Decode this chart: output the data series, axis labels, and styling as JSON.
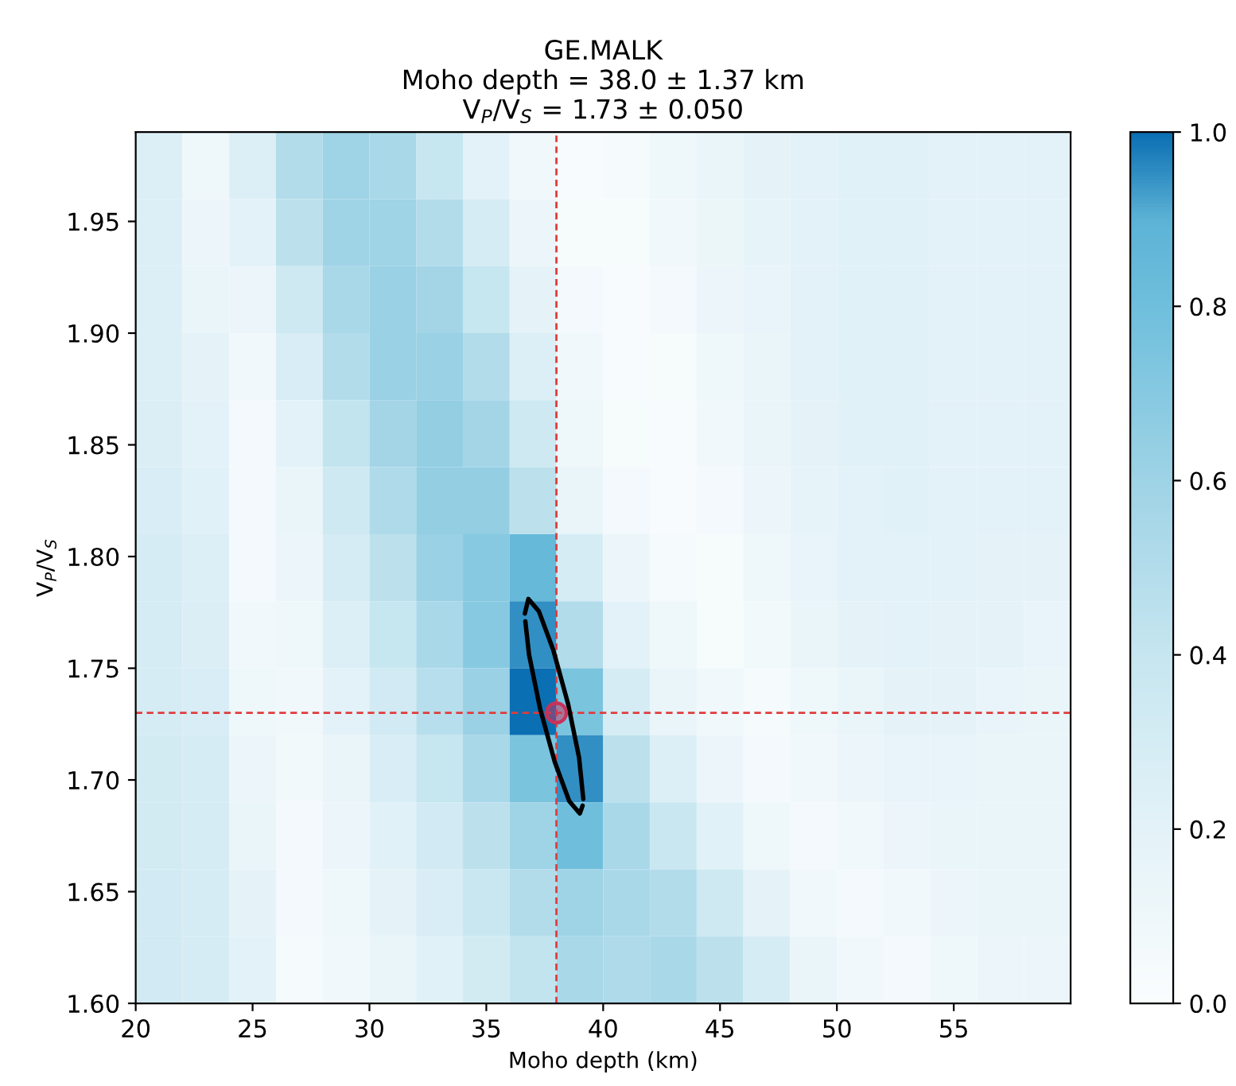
{
  "chart_data": {
    "type": "heatmap",
    "title": "GE.MALK\nMoho depth = 38.0 ± 1.37 km\nV$_{P}$/V$_{S}$ = 1.73 ± 0.050",
    "xlabel": "Moho depth (km)",
    "ylabel": "V$_{P}$/V$_{S}$",
    "xlim": [
      20,
      60
    ],
    "ylim": [
      1.6,
      1.99
    ],
    "xticks": [
      20,
      25,
      30,
      35,
      40,
      45,
      50,
      55
    ],
    "yticks": [
      {
        "value": 1.6,
        "label": "1.60"
      },
      1.65,
      {
        "value": 1.7,
        "label": "1.70"
      },
      1.75,
      {
        "value": 1.8,
        "label": "1.80"
      },
      1.85,
      {
        "value": 1.9,
        "label": "1.90"
      },
      1.95
    ],
    "clim": [
      0,
      1
    ],
    "cticks": [
      {
        "value": 0,
        "label": "0.0"
      },
      {
        "value": 0.2,
        "label": "0.2"
      },
      {
        "value": 0.4,
        "label": "0.4"
      },
      {
        "value": 0.6,
        "label": "0.6"
      },
      {
        "value": 0.8,
        "label": "0.8"
      },
      {
        "value": 1,
        "label": "1.0"
      }
    ],
    "colors": [
      "#fbfdfe",
      "#eef7fa",
      "#e3f2f8",
      "#d5ecf4",
      "#c6e6f0",
      "#b3dceb",
      "#9fd3e6",
      "#87c9e1",
      "#6fbfdc",
      "#5db3d6",
      "#0b6fb3"
    ],
    "cells": [
      [
        0.25,
        0.1,
        0.25,
        0.5,
        0.6,
        0.55,
        0.4,
        0.2,
        0.08,
        0.03,
        0.05,
        0.1,
        0.15,
        0.18,
        0.2,
        0.22,
        0.22,
        0.2,
        0.2,
        0.2
      ],
      [
        0.25,
        0.12,
        0.2,
        0.45,
        0.6,
        0.6,
        0.5,
        0.3,
        0.12,
        0.04,
        0.04,
        0.08,
        0.13,
        0.17,
        0.2,
        0.22,
        0.22,
        0.2,
        0.2,
        0.2
      ],
      [
        0.25,
        0.15,
        0.12,
        0.35,
        0.55,
        0.62,
        0.58,
        0.4,
        0.18,
        0.06,
        0.03,
        0.06,
        0.12,
        0.16,
        0.2,
        0.22,
        0.22,
        0.2,
        0.2,
        0.2
      ],
      [
        0.25,
        0.18,
        0.08,
        0.28,
        0.5,
        0.62,
        0.62,
        0.5,
        0.25,
        0.08,
        0.03,
        0.04,
        0.1,
        0.15,
        0.2,
        0.22,
        0.22,
        0.2,
        0.2,
        0.2
      ],
      [
        0.26,
        0.2,
        0.06,
        0.2,
        0.42,
        0.58,
        0.65,
        0.58,
        0.35,
        0.1,
        0.04,
        0.03,
        0.08,
        0.14,
        0.18,
        0.22,
        0.22,
        0.2,
        0.2,
        0.2
      ],
      [
        0.28,
        0.22,
        0.06,
        0.15,
        0.35,
        0.52,
        0.65,
        0.65,
        0.45,
        0.15,
        0.06,
        0.03,
        0.06,
        0.12,
        0.17,
        0.2,
        0.22,
        0.2,
        0.2,
        0.2
      ],
      [
        0.3,
        0.25,
        0.06,
        0.12,
        0.3,
        0.45,
        0.62,
        0.7,
        0.85,
        0.3,
        0.12,
        0.05,
        0.04,
        0.1,
        0.16,
        0.2,
        0.2,
        0.2,
        0.18,
        0.18
      ],
      [
        0.3,
        0.26,
        0.08,
        0.1,
        0.25,
        0.4,
        0.55,
        0.7,
        0.95,
        0.5,
        0.2,
        0.1,
        0.04,
        0.07,
        0.14,
        0.18,
        0.2,
        0.18,
        0.18,
        0.16
      ],
      [
        0.3,
        0.28,
        0.1,
        0.08,
        0.2,
        0.33,
        0.48,
        0.62,
        1.0,
        0.75,
        0.3,
        0.15,
        0.08,
        0.05,
        0.1,
        0.15,
        0.18,
        0.18,
        0.16,
        0.15
      ],
      [
        0.32,
        0.3,
        0.12,
        0.07,
        0.15,
        0.28,
        0.4,
        0.55,
        0.75,
        0.95,
        0.45,
        0.25,
        0.12,
        0.06,
        0.08,
        0.12,
        0.16,
        0.16,
        0.15,
        0.14
      ],
      [
        0.32,
        0.3,
        0.15,
        0.06,
        0.12,
        0.22,
        0.33,
        0.45,
        0.6,
        0.8,
        0.55,
        0.38,
        0.22,
        0.1,
        0.06,
        0.08,
        0.12,
        0.15,
        0.15,
        0.14
      ],
      [
        0.33,
        0.3,
        0.18,
        0.06,
        0.1,
        0.18,
        0.28,
        0.38,
        0.5,
        0.6,
        0.55,
        0.5,
        0.35,
        0.18,
        0.08,
        0.06,
        0.08,
        0.12,
        0.14,
        0.14
      ],
      [
        0.33,
        0.3,
        0.2,
        0.05,
        0.08,
        0.15,
        0.22,
        0.32,
        0.42,
        0.55,
        0.52,
        0.55,
        0.45,
        0.3,
        0.15,
        0.08,
        0.06,
        0.1,
        0.12,
        0.12
      ]
    ],
    "series": [
      {
        "type": "line",
        "color": "#000000",
        "line_style": "solid",
        "marker": "none",
        "x": [
          36.65,
          36.8,
          37.25,
          37.87,
          38.5,
          38.97,
          39.15
        ],
        "values": [
          1.7745,
          1.781,
          1.7755,
          1.758,
          1.734,
          1.71,
          1.6915
        ]
      },
      {
        "type": "line",
        "color": "#000000",
        "line_style": "solid",
        "marker": "none",
        "x": [
          36.67,
          36.83,
          37.3,
          37.93,
          38.55,
          39.0,
          39.12
        ],
        "values": [
          1.771,
          1.756,
          1.732,
          1.708,
          1.6905,
          1.685,
          1.6885
        ]
      },
      {
        "type": "scatter",
        "color": "#c8325a",
        "marker": "circle",
        "x": [
          38.0
        ],
        "values": [
          1.73
        ]
      }
    ],
    "ref_lines": [
      {
        "axis": "x",
        "value": 38.0,
        "color": "#e03c3c",
        "line_style": "dashed"
      },
      {
        "axis": "y",
        "value": 1.73,
        "color": "#e03c3c",
        "line_style": "dashed"
      }
    ],
    "grid": false
  }
}
